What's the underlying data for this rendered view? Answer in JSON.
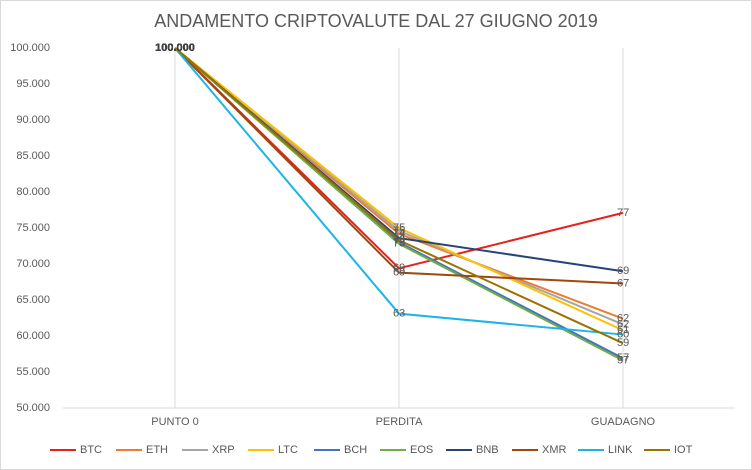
{
  "chart_data": {
    "type": "line",
    "title": "ANDAMENTO CRIPTOVALUTE DAL 27 GIUGNO 2019",
    "categories": [
      "PUNTO 0",
      "PERDITA",
      "GUADAGNO"
    ],
    "ylim": [
      50,
      100
    ],
    "yticks": [
      {
        "value": 50,
        "label": "50.000"
      },
      {
        "value": 55,
        "label": "55.000"
      },
      {
        "value": 60,
        "label": "60.000"
      },
      {
        "value": 65,
        "label": "65.000"
      },
      {
        "value": 70,
        "label": "70.000"
      },
      {
        "value": 75,
        "label": "75.000"
      },
      {
        "value": 80,
        "label": "80.000"
      },
      {
        "value": 85,
        "label": "85.000"
      },
      {
        "value": 90,
        "label": "90.000"
      },
      {
        "value": 95,
        "label": "95.000"
      },
      {
        "value": 100,
        "label": "100.000"
      }
    ],
    "grid": "x",
    "legend": "bottom",
    "series": [
      {
        "name": "BTC",
        "color": "#e8201c",
        "values": [
          100,
          69.4,
          77.1
        ],
        "value_labels": [
          "100.000",
          "69",
          "77"
        ]
      },
      {
        "name": "ETH",
        "color": "#ed7d31",
        "values": [
          100,
          74.2,
          62.4
        ],
        "value_labels": [
          "100.000",
          "74",
          "62"
        ]
      },
      {
        "name": "XRP",
        "color": "#a5a5a5",
        "values": [
          100,
          74.6,
          61.6
        ],
        "value_labels": [
          "100.000",
          "75",
          "62"
        ]
      },
      {
        "name": "LTC",
        "color": "#ffc000",
        "values": [
          100,
          75.0,
          60.8
        ],
        "value_labels": [
          "100.000",
          "75",
          "61"
        ]
      },
      {
        "name": "BCH",
        "color": "#4472c4",
        "values": [
          100,
          73.0,
          56.9
        ],
        "value_labels": [
          "100.000",
          "73",
          "57"
        ]
      },
      {
        "name": "EOS",
        "color": "#70ad47",
        "values": [
          100,
          72.8,
          56.6
        ],
        "value_labels": [
          "100.000",
          "73",
          "57"
        ]
      },
      {
        "name": "BNB",
        "color": "#264478",
        "values": [
          100,
          73.6,
          69.0
        ],
        "value_labels": [
          "100.000",
          "74",
          "69"
        ]
      },
      {
        "name": "XMR",
        "color": "#9e480e",
        "values": [
          100,
          68.8,
          67.3
        ],
        "value_labels": [
          "100.000",
          "69",
          "67"
        ]
      },
      {
        "name": "LINK",
        "color": "#1eb4e6",
        "values": [
          100,
          63.1,
          60.2
        ],
        "value_labels": [
          "100.000",
          "63",
          "60"
        ]
      },
      {
        "name": "IOT",
        "color": "#997300",
        "values": [
          100,
          73.3,
          59.0
        ],
        "value_labels": [
          "100.000",
          "73",
          "59"
        ]
      }
    ]
  }
}
